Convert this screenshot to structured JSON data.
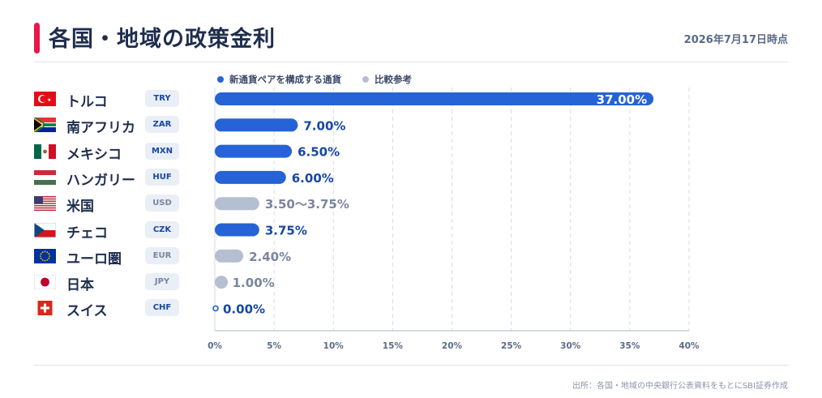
{
  "header": {
    "title": "各国・地域の政策金利",
    "date": "2026年7月17日時点"
  },
  "legend": [
    {
      "label": "新通貨ペアを構成する通貨",
      "color": "#2563d6"
    },
    {
      "label": "比較参考",
      "color": "#b4bfd1"
    }
  ],
  "colors": {
    "primary": "#2563d6",
    "reference": "#b4bfd1",
    "primary_text": "#1747a6",
    "reference_text": "#7a869c",
    "accent": "#e8174a"
  },
  "chart_data": {
    "type": "bar",
    "orientation": "horizontal",
    "categories": [
      "トルコ",
      "南アフリカ",
      "メキシコ",
      "ハンガリー",
      "米国",
      "チェコ",
      "ユーロ圏",
      "日本",
      "スイス"
    ],
    "codes": [
      "TRY",
      "ZAR",
      "MXN",
      "HUF",
      "USD",
      "CZK",
      "EUR",
      "JPY",
      "CHF"
    ],
    "flags": [
      "flag-turkey",
      "flag-south-africa",
      "flag-mexico",
      "flag-hungary",
      "flag-usa",
      "flag-czech",
      "flag-eu",
      "flag-japan",
      "flag-switzerland"
    ],
    "values": [
      37.0,
      7.0,
      6.5,
      6.0,
      3.75,
      3.75,
      2.4,
      1.0,
      0.0
    ],
    "value_labels": [
      "37.00%",
      "7.00%",
      "6.50%",
      "6.00%",
      "3.50〜3.75%",
      "3.75%",
      "2.40%",
      "1.00%",
      "0.00%"
    ],
    "group": [
      "primary",
      "primary",
      "primary",
      "primary",
      "reference",
      "primary",
      "reference",
      "reference",
      "primary"
    ],
    "x_ticks": [
      "0%",
      "5%",
      "10%",
      "15%",
      "20%",
      "25%",
      "30%",
      "35%",
      "40%"
    ],
    "xlim": [
      0,
      40
    ],
    "grid": "vertical-dashed",
    "legend_position": "top"
  },
  "source": "出所：各国・地域の中央銀行公表資料をもとにSBI証券作成"
}
